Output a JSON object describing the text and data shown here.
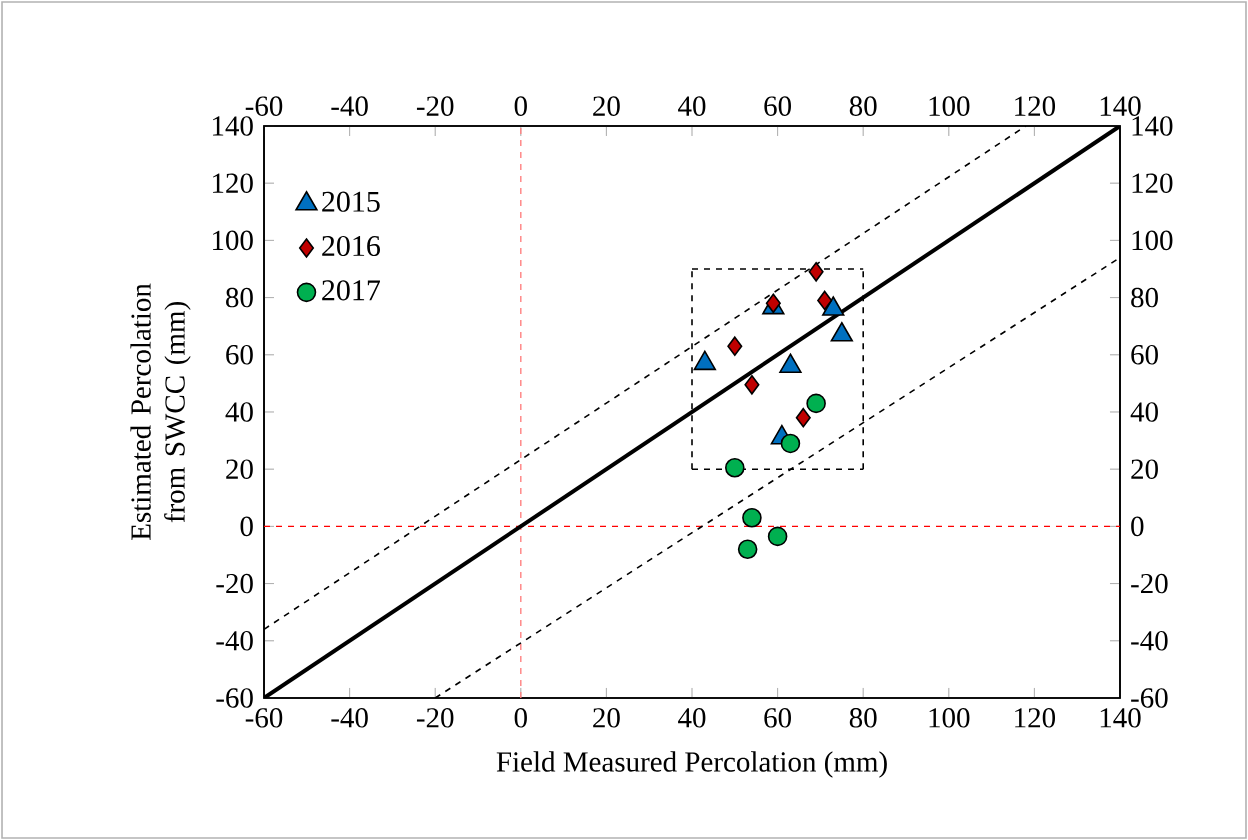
{
  "chart_data": {
    "type": "scatter",
    "xlabel": "Field Measured Percolation (mm)",
    "ylabel": "Estimated Percolation from SWCC (mm)",
    "xlim": [
      -60,
      140
    ],
    "xticks": [
      -60,
      -40,
      -20,
      0,
      20,
      40,
      60,
      80,
      100,
      120,
      140
    ],
    "ylim": [
      -60,
      140
    ],
    "yticks": [
      -60,
      -40,
      -20,
      0,
      20,
      40,
      60,
      80,
      100,
      120,
      140
    ],
    "x2lim": [
      -60,
      140
    ],
    "x2ticks": [
      -60,
      -40,
      -20,
      0,
      20,
      40,
      60,
      80,
      100,
      120,
      140
    ],
    "y2lim": [
      -60,
      140
    ],
    "y2ticks": [
      -60,
      -40,
      -20,
      0,
      20,
      40,
      60,
      80,
      100,
      120,
      140
    ],
    "grid": false,
    "legend": "top left",
    "ref_lines": [
      {
        "axis": "x",
        "value": 0,
        "color": "#ff8080",
        "line_style": "dashed"
      },
      {
        "axis": "y",
        "value": 0,
        "color": "#ff0000",
        "line_style": "dashed"
      }
    ],
    "series": [
      {
        "type": "line",
        "color": "#000000",
        "line_style": "solid",
        "marker": "none",
        "x": [
          -60,
          140
        ],
        "values": [
          -60,
          140
        ]
      },
      {
        "type": "line",
        "color": "#000000",
        "line_style": "dashed",
        "marker": "none",
        "x": [
          -60,
          118
        ],
        "values": [
          -36,
          140
        ]
      },
      {
        "type": "line",
        "color": "#000000",
        "line_style": "dashed",
        "marker": "none",
        "x": [
          -20,
          140
        ],
        "values": [
          -60,
          94
        ]
      },
      {
        "type": "line",
        "color": "#000000",
        "line_style": "dashed",
        "marker": "none",
        "x": [
          40,
          80
        ],
        "values": [
          20,
          20
        ]
      },
      {
        "type": "line",
        "color": "#000000",
        "line_style": "dashed",
        "marker": "none",
        "x": [
          40,
          80
        ],
        "values": [
          90,
          90
        ]
      },
      {
        "type": "line",
        "color": "#000000",
        "line_style": "dashed",
        "marker": "none",
        "x": [
          40,
          40
        ],
        "values": [
          20,
          90
        ]
      },
      {
        "type": "line",
        "color": "#000000",
        "line_style": "dashed",
        "marker": "none",
        "x": [
          80,
          80
        ],
        "values": [
          20,
          90
        ]
      },
      {
        "name": "2015",
        "color": "#0070c0",
        "marker": "triangle",
        "x": [
          43,
          59,
          63,
          61,
          73,
          75
        ],
        "values": [
          57,
          76.5,
          56,
          31,
          76,
          67
        ]
      },
      {
        "name": "2016",
        "color": "#c00000",
        "marker": "diamond",
        "x": [
          69,
          59,
          71,
          50,
          54,
          66
        ],
        "values": [
          89,
          78,
          79,
          63,
          49.5,
          38
        ]
      },
      {
        "name": "2017",
        "color": "#00b050",
        "marker": "circle",
        "x": [
          50,
          69,
          63,
          54,
          53,
          60
        ],
        "values": [
          20.5,
          43,
          29,
          3,
          -8,
          -3.5
        ]
      }
    ]
  }
}
